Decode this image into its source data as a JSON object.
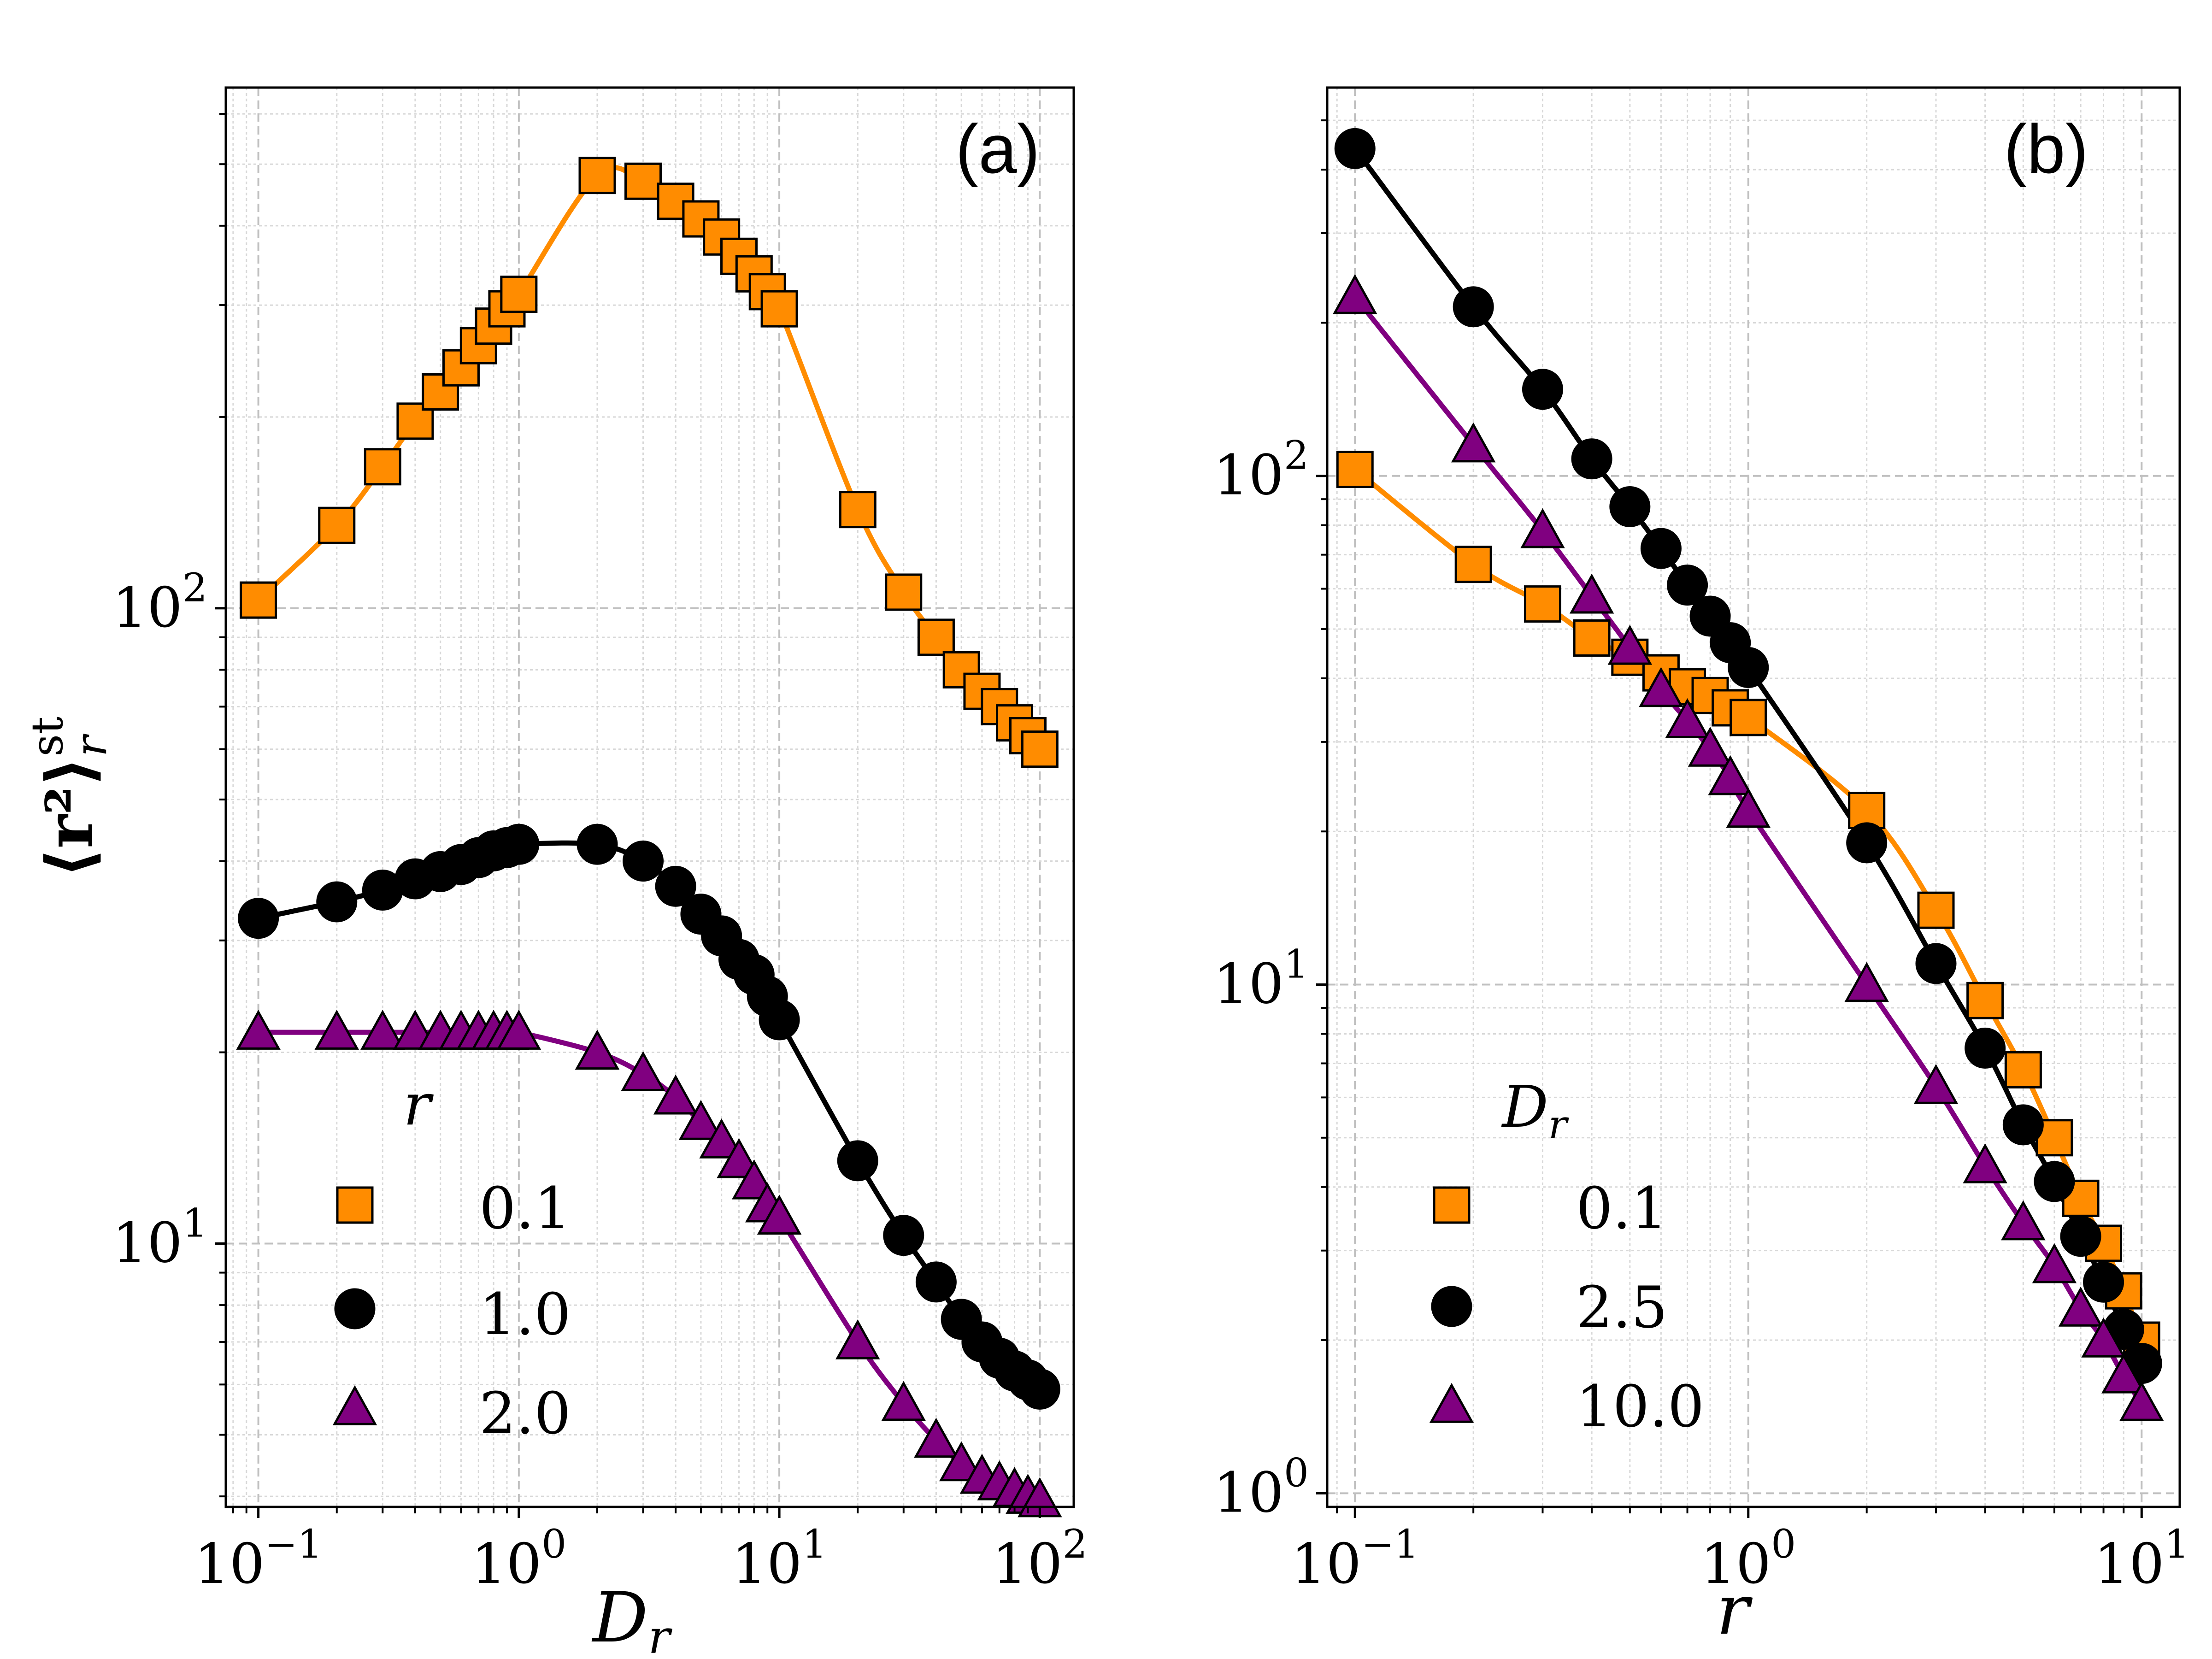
{
  "chart_data": [
    {
      "type": "scatter",
      "panel_label": "(a)",
      "xlabel": "D",
      "xlabel_sub": "r",
      "ylabel": "⟨r²⟩",
      "ylabel_sup": "st",
      "ylabel_sub": "r",
      "xscale": "log",
      "yscale": "log",
      "xlim": [
        0.075,
        135
      ],
      "ylim": [
        3.85,
        660
      ],
      "xticks": [
        {
          "base": "10",
          "exp": "−1",
          "value": 0.1
        },
        {
          "base": "10",
          "exp": "0",
          "value": 1
        },
        {
          "base": "10",
          "exp": "1",
          "value": 10
        },
        {
          "base": "10",
          "exp": "2",
          "value": 100
        }
      ],
      "yticks": [
        {
          "base": "10",
          "exp": "1",
          "value": 10
        },
        {
          "base": "10",
          "exp": "2",
          "value": 100
        }
      ],
      "grid": true,
      "legend": {
        "title": "r",
        "placement": "lower-left"
      },
      "series": [
        {
          "name": "0.1",
          "marker": "square",
          "color": "#FF8C00",
          "x": [
            0.1,
            0.2,
            0.3,
            0.4,
            0.5,
            0.6,
            0.7,
            0.8,
            0.9,
            1.0,
            2.0,
            3.0,
            4.0,
            5.0,
            6.0,
            7.0,
            8.0,
            9.0,
            10.0,
            20.0,
            30.0,
            40.0,
            50.0,
            60.0,
            70.0,
            80.0,
            90.0,
            100.0
          ],
          "y": [
            103,
            135,
            167,
            197,
            219,
            239,
            259,
            278,
            296,
            312,
            480,
            470,
            437,
            410,
            384,
            358,
            336,
            315,
            296,
            143,
            106,
            90,
            80,
            74,
            70,
            66,
            63,
            60
          ]
        },
        {
          "name": "1.0",
          "marker": "circle",
          "color": "#000000",
          "x": [
            0.1,
            0.2,
            0.3,
            0.4,
            0.5,
            0.6,
            0.7,
            0.8,
            0.9,
            1.0,
            2.0,
            3.0,
            4.0,
            5.0,
            6.0,
            7.0,
            8.0,
            9.0,
            10.0,
            20.0,
            30.0,
            40.0,
            50.0,
            60.0,
            70.0,
            80.0,
            90.0,
            100.0
          ],
          "y": [
            32.5,
            34.5,
            36,
            37.5,
            38.5,
            39.5,
            40.5,
            41.5,
            42,
            42.5,
            42.5,
            40,
            36.5,
            33,
            30.5,
            28,
            26.5,
            24.5,
            22.5,
            13.5,
            10.3,
            8.7,
            7.6,
            7.0,
            6.6,
            6.3,
            6.1,
            5.9
          ]
        },
        {
          "name": "2.0",
          "marker": "triangle",
          "color": "#800080",
          "x": [
            0.1,
            0.2,
            0.3,
            0.4,
            0.5,
            0.6,
            0.7,
            0.8,
            0.9,
            1.0,
            2.0,
            3.0,
            4.0,
            5.0,
            6.0,
            7.0,
            8.0,
            9.0,
            10.0,
            20.0,
            30.0,
            40.0,
            50.0,
            60.0,
            70.0,
            80.0,
            90.0,
            100.0
          ],
          "y": [
            21.5,
            21.5,
            21.5,
            21.5,
            21.5,
            21.5,
            21.5,
            21.5,
            21.5,
            21.5,
            20,
            18.5,
            17,
            15.5,
            14.5,
            13.5,
            12.5,
            11.5,
            11,
            7.0,
            5.6,
            4.9,
            4.5,
            4.3,
            4.2,
            4.1,
            4.0,
            3.95
          ]
        }
      ]
    },
    {
      "type": "scatter",
      "panel_label": "(b)",
      "xlabel": "r",
      "xlabel_sub": "",
      "ylabel": "",
      "xscale": "log",
      "yscale": "log",
      "xlim": [
        0.085,
        12.5
      ],
      "ylim": [
        0.94,
        580
      ],
      "xticks": [
        {
          "base": "10",
          "exp": "−1",
          "value": 0.1
        },
        {
          "base": "10",
          "exp": "0",
          "value": 1
        },
        {
          "base": "10",
          "exp": "1",
          "value": 10
        }
      ],
      "yticks": [
        {
          "base": "10",
          "exp": "0",
          "value": 1
        },
        {
          "base": "10",
          "exp": "1",
          "value": 10
        },
        {
          "base": "10",
          "exp": "2",
          "value": 100
        }
      ],
      "grid": true,
      "legend": {
        "title": "D",
        "title_sub": "r",
        "placement": "lower-left"
      },
      "series": [
        {
          "name": "0.1",
          "marker": "square",
          "color": "#FF8C00",
          "x": [
            0.1,
            0.2,
            0.3,
            0.4,
            0.5,
            0.6,
            0.7,
            0.8,
            0.9,
            1.0,
            2.0,
            3.0,
            4.0,
            5.0,
            6.0,
            7.0,
            8.0,
            9.0,
            10.0
          ],
          "y": [
            103,
            67,
            56,
            48,
            44,
            41,
            38.5,
            37,
            35,
            33.5,
            22,
            14,
            9.3,
            6.8,
            5,
            3.8,
            3.1,
            2.5,
            2.0
          ]
        },
        {
          "name": "2.5",
          "marker": "circle",
          "color": "#000000",
          "x": [
            0.1,
            0.2,
            0.3,
            0.4,
            0.5,
            0.6,
            0.7,
            0.8,
            0.9,
            1.0,
            2.0,
            3.0,
            4.0,
            5.0,
            6.0,
            7.0,
            8.0,
            9.0,
            10.0
          ],
          "y": [
            440,
            215,
            148,
            108,
            87,
            72,
            61,
            53,
            47,
            42,
            19,
            11,
            7.5,
            5.3,
            4.1,
            3.2,
            2.6,
            2.1,
            1.8
          ]
        },
        {
          "name": "10.0",
          "marker": "triangle",
          "color": "#800080",
          "x": [
            0.1,
            0.2,
            0.3,
            0.4,
            0.5,
            0.6,
            0.7,
            0.8,
            0.9,
            1.0,
            2.0,
            3.0,
            4.0,
            5.0,
            6.0,
            7.0,
            8.0,
            9.0,
            10.0
          ],
          "y": [
            225,
            115,
            78,
            58,
            46,
            38,
            33,
            29,
            25.5,
            22,
            10,
            6.3,
            4.4,
            3.4,
            2.8,
            2.3,
            2.0,
            1.7,
            1.5
          ]
        }
      ]
    }
  ]
}
